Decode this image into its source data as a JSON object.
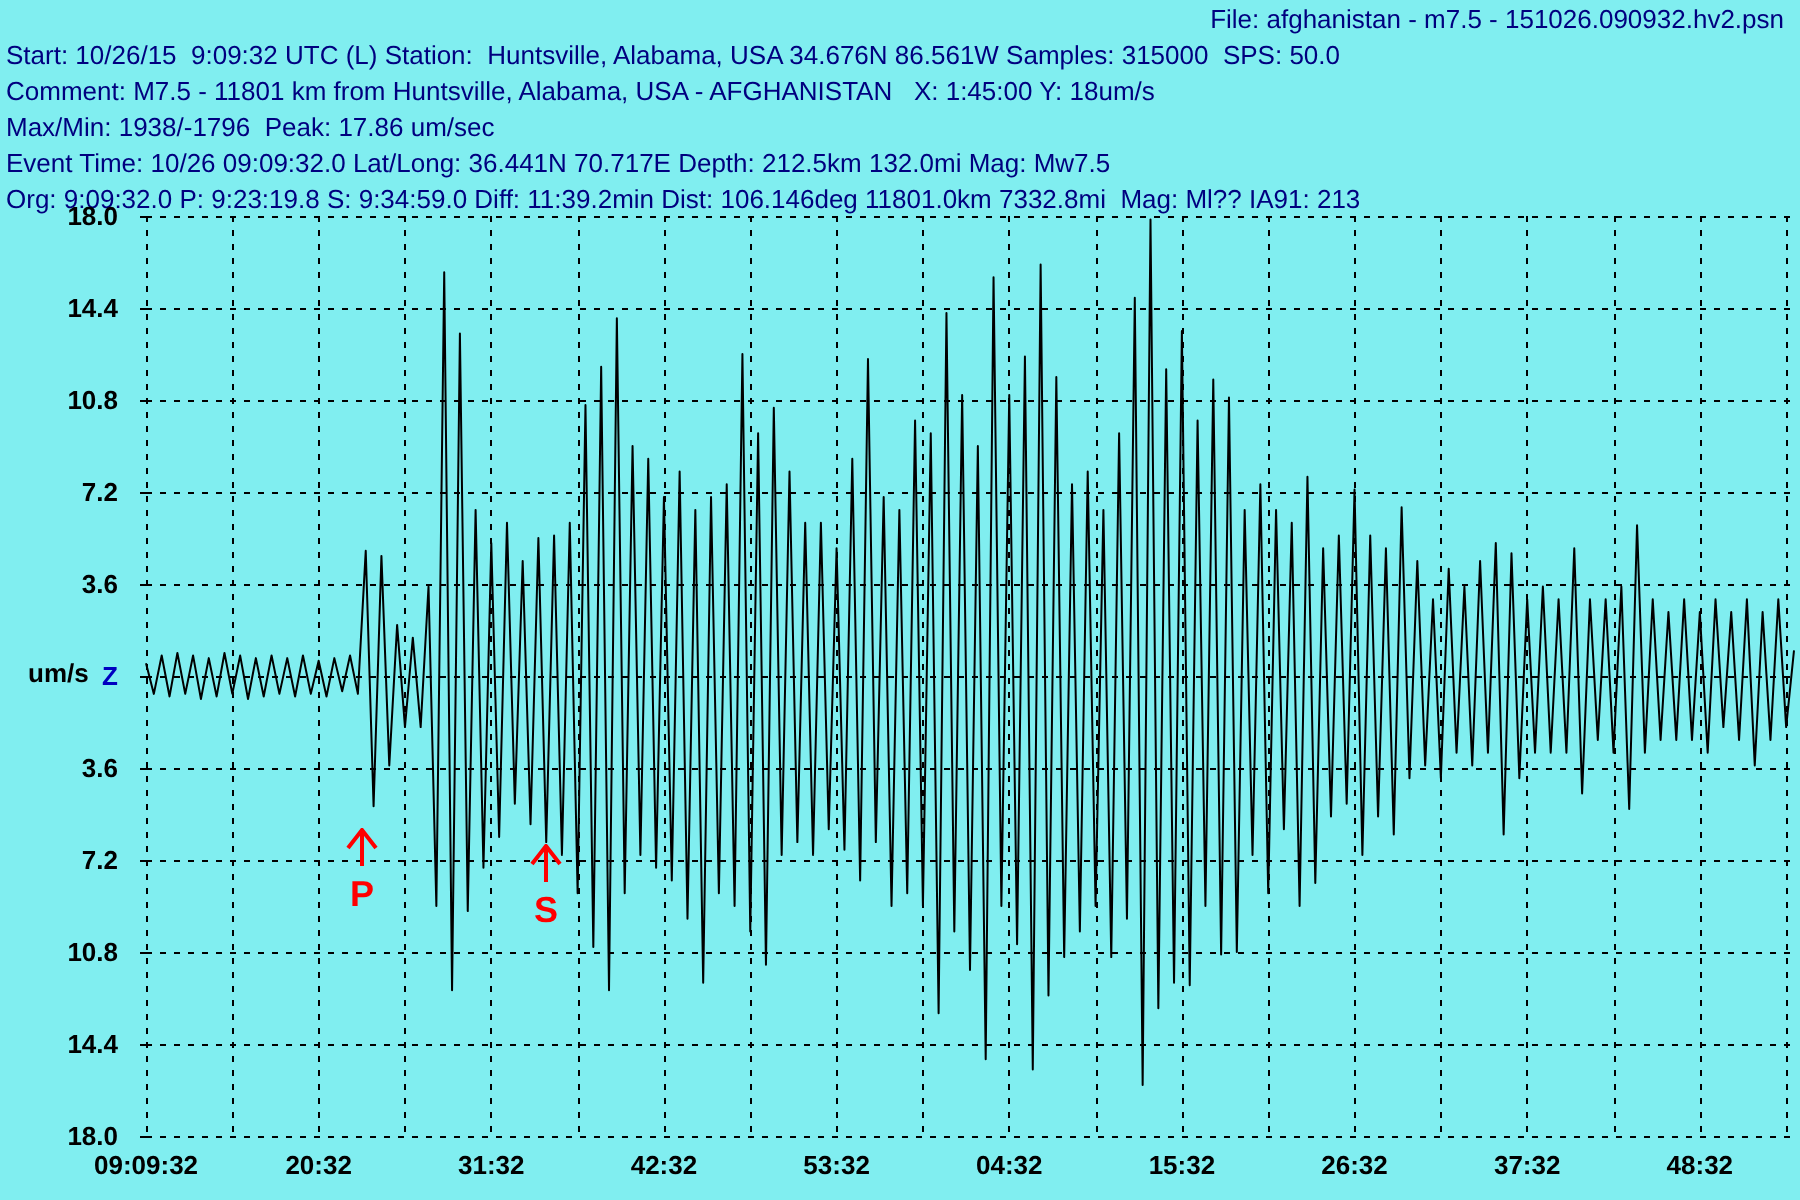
{
  "chart_data": {
    "type": "line",
    "ylabel": "um/s",
    "annotations": [
      "File: afghanistan - m7.5 - 151026.090932.hv2.psn",
      "Start: 10/26/15  9:09:32 UTC (L) Station:  Huntsville, Alabama, USA 34.676N 86.561W Samples: 315000  SPS: 50.0",
      "Comment: M7.5 - 11801 km from Huntsville, Alabama, USA - AFGHANISTAN   X: 1:45:00 Y: 18um/s",
      "Max/Min: 1938/-1796  Peak: 17.86 um/sec",
      "Event Time: 10/26 09:09:32.0 Lat/Long: 36.441N 70.717E Depth: 212.5km 132.0mi Mag: Mw7.5",
      "Org: 9:09:32.0 P: 9:23:19.8 S: 9:34:59.0 Diff: 11:39.2min Dist: 106.146deg 11801.0km 7332.8mi  Mag: Ml?? IA91: 213",
      "P",
      "S"
    ],
    "categories": [
      "09:09:32",
      null,
      null,
      null,
      null,
      null,
      null,
      null,
      null,
      null,
      null,
      null,
      null,
      null,
      null,
      null,
      null,
      null,
      null,
      null,
      null,
      null,
      "20:32",
      null,
      null,
      null,
      null,
      null,
      null,
      null,
      null,
      null,
      null,
      null,
      null,
      null,
      null,
      null,
      null,
      null,
      null,
      null,
      null,
      null,
      "31:32",
      null,
      null,
      null,
      null,
      null,
      null,
      null,
      null,
      null,
      null,
      null,
      null,
      null,
      null,
      null,
      null,
      null,
      null,
      null,
      null,
      null,
      "42:32",
      null,
      null,
      null,
      null,
      null,
      null,
      null,
      null,
      null,
      null,
      null,
      null,
      null,
      null,
      null,
      null,
      null,
      null,
      null,
      null,
      null,
      "53:32",
      null,
      null,
      null,
      null,
      null,
      null,
      null,
      null,
      null,
      null,
      null,
      null,
      null,
      null,
      null,
      null,
      null,
      null,
      null,
      null,
      null,
      "04:32",
      null,
      null,
      null,
      null,
      null,
      null,
      null,
      null,
      null,
      null,
      null,
      null,
      null,
      null,
      null,
      null,
      null,
      null,
      null,
      null,
      null,
      "15:32",
      null,
      null,
      null,
      null,
      null,
      null,
      null,
      null,
      null,
      null,
      null,
      null,
      null,
      null,
      null,
      null,
      null,
      null,
      null,
      null,
      null,
      "26:32",
      null,
      null,
      null,
      null,
      null,
      null,
      null,
      null,
      null,
      null,
      null,
      null,
      null,
      null,
      null,
      null,
      null,
      null,
      null,
      null,
      null,
      "37:32",
      null,
      null,
      null,
      null,
      null,
      null,
      null,
      null,
      null,
      null,
      null,
      null,
      null,
      null,
      null,
      null,
      null,
      null,
      null,
      null,
      null,
      "48:32",
      null,
      null,
      null,
      null,
      null,
      null,
      null,
      null,
      null,
      null,
      null,
      null
    ],
    "series": [
      {
        "color": "#000000",
        "values": [
          0.5,
          -0.7,
          0.8,
          -0.8,
          0.9,
          -0.7,
          0.8,
          -0.9,
          0.7,
          -0.8,
          0.9,
          -0.7,
          0.8,
          -0.9,
          0.7,
          -0.8,
          0.8,
          -0.7,
          0.7,
          -0.8,
          0.8,
          -0.7,
          0.6,
          -0.8,
          0.7,
          -0.6,
          0.8,
          -0.7,
          4.9,
          -5.1,
          4.7,
          -3.5,
          2.0,
          -2.0,
          1.5,
          -2.0,
          3.5,
          -9.0,
          15.8,
          -12.3,
          13.4,
          -9.2,
          6.5,
          -7.5,
          5.2,
          -6.3,
          6.0,
          -5.0,
          4.5,
          -5.8,
          5.4,
          -6.5,
          5.5,
          -7.0,
          6.0,
          -8.5,
          10.6,
          -10.6,
          12.1,
          -12.3,
          14.0,
          -8.5,
          9.0,
          -7.0,
          8.5,
          -7.5,
          7.0,
          -8.0,
          8.0,
          -9.5,
          6.5,
          -12.0,
          7.0,
          -8.5,
          7.5,
          -9.0,
          12.6,
          -10.0,
          9.5,
          -11.3,
          10.5,
          -7.0,
          8.0,
          -6.5,
          6.0,
          -7.0,
          6.0,
          -6.0,
          5.0,
          -6.8,
          8.5,
          -8.0,
          12.4,
          -6.5,
          7.0,
          -9.0,
          6.5,
          -8.5,
          10.0,
          -9.0,
          9.5,
          -13.2,
          14.2,
          -10.0,
          11.0,
          -11.5,
          9.0,
          -15.0,
          15.6,
          -9.0,
          11.0,
          -10.5,
          12.5,
          -15.4,
          16.1,
          -12.5,
          11.7,
          -11.0,
          7.5,
          -10.0,
          8.0,
          -9.0,
          6.5,
          -11.0,
          9.5,
          -9.5,
          14.8,
          -16.0,
          17.86,
          -13.0,
          12.0,
          -12.0,
          13.5,
          -12.1,
          10.0,
          -9.0,
          11.6,
          -10.9,
          10.9,
          -10.8,
          6.5,
          -7.0,
          7.5,
          -8.5,
          6.5,
          -6.0,
          6.0,
          -9.0,
          7.8,
          -8.1,
          5.0,
          -5.5,
          5.5,
          -5.0,
          7.3,
          -7.0,
          5.5,
          -5.5,
          5.0,
          -6.2,
          6.6,
          -4.0,
          4.5,
          -3.5,
          3.0,
          -4.0,
          4.2,
          -3.0,
          3.5,
          -3.5,
          4.5,
          -3.0,
          5.2,
          -6.2,
          4.8,
          -4.0,
          3.0,
          -3.0,
          3.5,
          -3.0,
          3.0,
          -3.0,
          5.0,
          -4.6,
          3.0,
          -2.5,
          3.0,
          -3.0,
          3.5,
          -5.2,
          5.9,
          -3.0,
          3.0,
          -2.5,
          2.5,
          -2.5,
          3.0,
          -2.5,
          2.5,
          -3.0,
          3.0,
          -2.0,
          2.5,
          -2.5,
          3.0,
          -3.5,
          2.5,
          -2.5,
          3.0,
          -2.0,
          1.0
        ]
      }
    ],
    "ylim": [
      -18,
      18
    ],
    "yticks": [
      {
        "value": -18,
        "label": "18.0"
      },
      {
        "value": -14.4,
        "label": "14.4"
      },
      {
        "value": -10.8,
        "label": "10.8"
      },
      {
        "value": -7.2,
        "label": "7.2"
      },
      {
        "value": -3.6,
        "label": "3.6"
      },
      {
        "value": 0,
        "label": "Z"
      },
      3.6,
      7.2,
      10.8,
      14.4,
      {
        "value": 18,
        "label": "18.0"
      }
    ],
    "grid": true,
    "marker": "none",
    "line_style": "solid"
  }
}
